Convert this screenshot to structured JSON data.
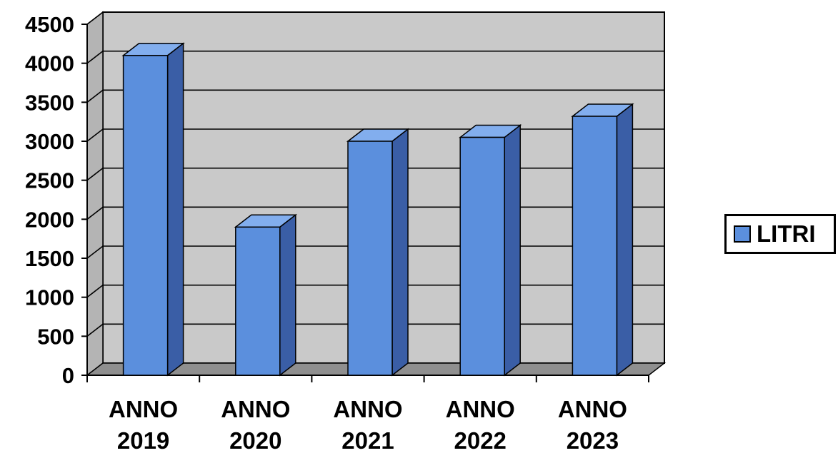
{
  "chart_data": {
    "type": "bar",
    "title": "",
    "xlabel": "",
    "ylabel": "",
    "categories": [
      [
        "ANNO",
        "2019"
      ],
      [
        "ANNO",
        "2020"
      ],
      [
        "ANNO",
        "2021"
      ],
      [
        "ANNO",
        "2022"
      ],
      [
        "ANNO",
        "2023"
      ]
    ],
    "series": [
      {
        "name": "LITRI",
        "values": [
          4100,
          1900,
          3000,
          3050,
          3320
        ]
      }
    ],
    "ylim": [
      0,
      4500
    ],
    "yticks": [
      "0",
      "500",
      "1000",
      "1500",
      "2000",
      "2500",
      "3000",
      "3500",
      "4000",
      "4500"
    ],
    "ytick_values": [
      0,
      500,
      1000,
      1500,
      2000,
      2500,
      3000,
      3500,
      4000,
      4500
    ],
    "grid": true,
    "style": "3d-column",
    "legend_position": "right",
    "colors": {
      "bar_front": "#5b8fdd",
      "bar_side": "#3a5ea6",
      "bar_top": "#82aeee",
      "wall": "#c9c9c9",
      "floor": "#8f8f8f"
    }
  },
  "legend": {
    "label": "LITRI"
  }
}
